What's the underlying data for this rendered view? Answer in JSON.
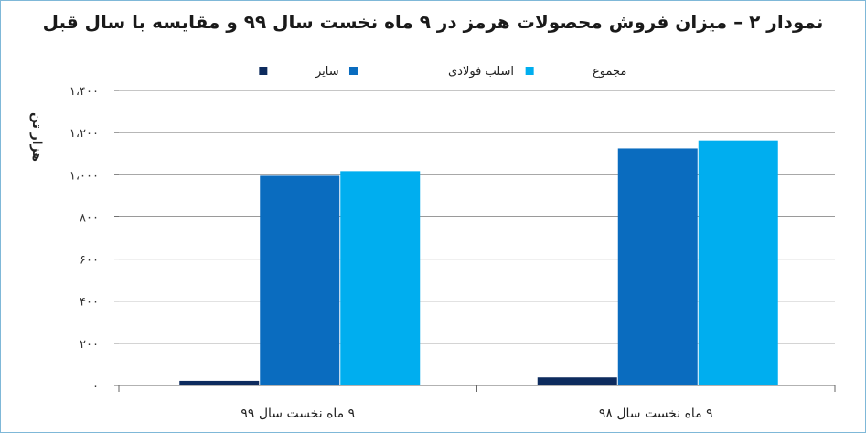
{
  "chart_data": {
    "type": "bar",
    "title": "نمودار ۲ – میزان فروش محصولات هرمز در ۹ ماه نخست سال ۹۹ و مقایسه با سال قبل",
    "ylabel": "هزار تن",
    "xlabel": "",
    "ylim": [
      0,
      1400
    ],
    "yticks": [
      0,
      200,
      400,
      600,
      800,
      1000,
      1200,
      1400
    ],
    "ytick_labels": [
      "۰",
      "۲۰۰",
      "۴۰۰",
      "۶۰۰",
      "۸۰۰",
      "۱،۰۰۰",
      "۱،۲۰۰",
      "۱،۴۰۰"
    ],
    "categories": [
      "۹ ماه نخست سال ۹۸",
      "۹ ماه نخست سال ۹۹"
    ],
    "series": [
      {
        "name": "سایر",
        "color": "#0d2b5e",
        "values": [
          38,
          22
        ]
      },
      {
        "name": "اسلب فولادی",
        "color": "#0a6cbf",
        "values": [
          1125,
          995
        ]
      },
      {
        "name": "مجموع",
        "color": "#00aeef",
        "values": [
          1163,
          1017
        ]
      }
    ],
    "grid": true,
    "legend_position": "top"
  }
}
